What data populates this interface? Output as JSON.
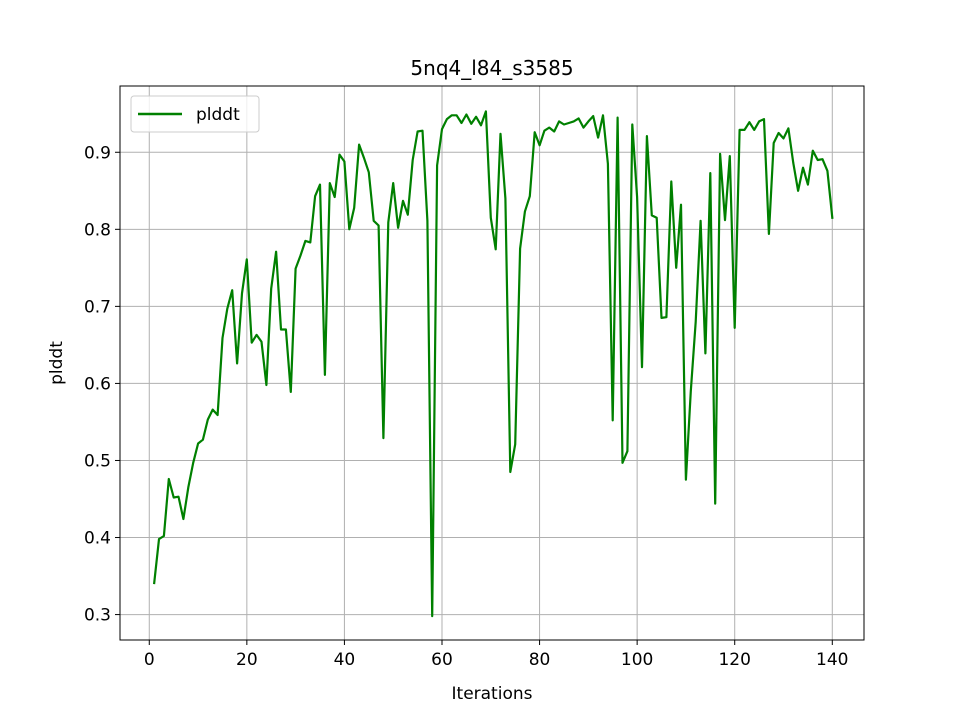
{
  "chart_data": {
    "type": "line",
    "title": "5nq4_l84_s3585",
    "xlabel": "Iterations",
    "ylabel": "plddt",
    "xlim": [
      -6,
      146.5
    ],
    "ylim": [
      0.267,
      0.986
    ],
    "xticks": [
      0,
      20,
      40,
      60,
      80,
      100,
      120,
      140
    ],
    "yticks": [
      0.3,
      0.4,
      0.5,
      0.6,
      0.7,
      0.8,
      0.9
    ],
    "xtick_labels": [
      "0",
      "20",
      "40",
      "60",
      "80",
      "100",
      "120",
      "140"
    ],
    "ytick_labels": [
      "0.3",
      "0.4",
      "0.5",
      "0.6",
      "0.7",
      "0.8",
      "0.9"
    ],
    "grid": true,
    "legend_position": "upper-left",
    "series": [
      {
        "name": "plddt",
        "color": "#008000",
        "x": [
          1,
          2,
          3,
          4,
          5,
          6,
          7,
          8,
          9,
          10,
          11,
          12,
          13,
          14,
          15,
          16,
          17,
          18,
          19,
          20,
          21,
          22,
          23,
          24,
          25,
          26,
          27,
          28,
          29,
          30,
          31,
          32,
          33,
          34,
          35,
          36,
          37,
          38,
          39,
          40,
          41,
          42,
          43,
          44,
          45,
          46,
          47,
          48,
          49,
          50,
          51,
          52,
          53,
          54,
          55,
          56,
          57,
          58,
          59,
          60,
          61,
          62,
          63,
          64,
          65,
          66,
          67,
          68,
          69,
          70,
          71,
          72,
          73,
          74,
          75,
          76,
          77,
          78,
          79,
          80,
          81,
          82,
          83,
          84,
          85,
          86,
          87,
          88,
          89,
          90,
          91,
          92,
          93,
          94,
          95,
          96,
          97,
          98,
          99,
          100,
          101,
          102,
          103,
          104,
          105,
          106,
          107,
          108,
          109,
          110,
          111,
          112,
          113,
          114,
          115,
          116,
          117,
          118,
          119,
          120,
          121,
          122,
          123,
          124,
          125,
          126,
          127,
          128,
          129,
          130,
          131,
          132,
          133,
          134,
          135,
          136,
          137,
          138,
          139,
          140
        ],
        "y": [
          0.341,
          0.398,
          0.402,
          0.476,
          0.452,
          0.453,
          0.424,
          0.465,
          0.497,
          0.522,
          0.527,
          0.553,
          0.566,
          0.559,
          0.659,
          0.697,
          0.721,
          0.626,
          0.717,
          0.761,
          0.653,
          0.663,
          0.654,
          0.598,
          0.723,
          0.771,
          0.67,
          0.67,
          0.589,
          0.749,
          0.766,
          0.785,
          0.783,
          0.843,
          0.858,
          0.611,
          0.86,
          0.842,
          0.897,
          0.888,
          0.8,
          0.828,
          0.91,
          0.893,
          0.874,
          0.811,
          0.805,
          0.529,
          0.809,
          0.86,
          0.802,
          0.837,
          0.819,
          0.89,
          0.927,
          0.928,
          0.811,
          0.298,
          0.883,
          0.93,
          0.943,
          0.948,
          0.948,
          0.938,
          0.949,
          0.937,
          0.946,
          0.935,
          0.953,
          0.815,
          0.774,
          0.924,
          0.84,
          0.485,
          0.521,
          0.775,
          0.823,
          0.843,
          0.926,
          0.909,
          0.928,
          0.932,
          0.927,
          0.94,
          0.936,
          0.938,
          0.94,
          0.944,
          0.932,
          0.94,
          0.947,
          0.919,
          0.948,
          0.885,
          0.552,
          0.945,
          0.497,
          0.512,
          0.936,
          0.842,
          0.621,
          0.921,
          0.818,
          0.815,
          0.685,
          0.686,
          0.862,
          0.75,
          0.832,
          0.475,
          0.59,
          0.68,
          0.811,
          0.639,
          0.873,
          0.444,
          0.898,
          0.812,
          0.895,
          0.672,
          0.929,
          0.929,
          0.939,
          0.929,
          0.94,
          0.943,
          0.794,
          0.912,
          0.925,
          0.918,
          0.931,
          0.886,
          0.85,
          0.88,
          0.858,
          0.902,
          0.89,
          0.891,
          0.876,
          0.815
        ]
      }
    ]
  }
}
